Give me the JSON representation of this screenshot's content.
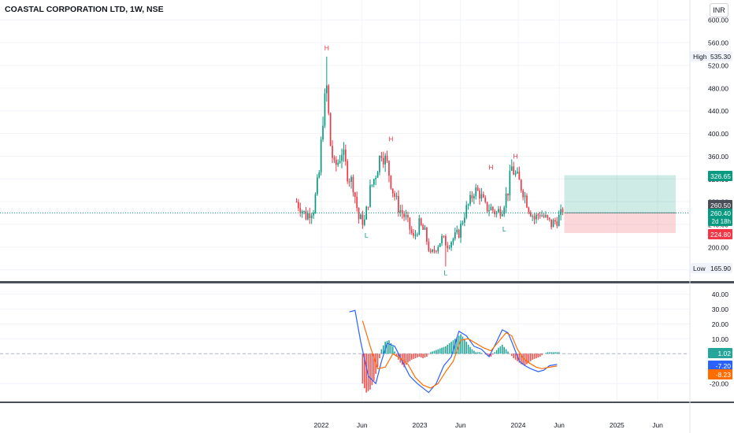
{
  "header": {
    "title": "COASTAL CORPORATION LTD, 1W, NSE",
    "currency": "INR"
  },
  "price_axis": {
    "ticks": [
      "600.00",
      "560.00",
      "520.00",
      "480.00",
      "440.00",
      "400.00",
      "360.00",
      "320.00",
      "280.00",
      "240.00",
      "200.00",
      "160.00"
    ]
  },
  "indicator_axis": {
    "ticks": [
      "40.00",
      "30.00",
      "20.00",
      "10.00",
      "0.00",
      "-20.00"
    ]
  },
  "time_axis": {
    "labels": [
      "2022",
      "Jun",
      "2023",
      "Jun",
      "2024",
      "Jun",
      "2025",
      "Jun"
    ]
  },
  "badges": {
    "high_label": "High",
    "high_value": "535.30",
    "low_label": "Low",
    "low_value": "165.90",
    "target": "326.65",
    "prev_price": "260.50",
    "price": "260.40",
    "countdown": "2d 18h",
    "stop": "224.80",
    "macd_hist": "1.02",
    "macd_line": "-7.20",
    "macd_signal": "-8.23"
  },
  "pattern_labels": {
    "high": "H",
    "low": "L"
  },
  "chart_data": [
    {
      "type": "candlestick",
      "title": "COASTAL CORPORATION LTD, 1W, NSE",
      "ylim": [
        150,
        610
      ],
      "x_labels": [
        "2022",
        "Jun",
        "2023",
        "Jun",
        "2024",
        "Jun",
        "2025",
        "Jun"
      ],
      "x_label_dates": [
        "2022-01-01",
        "2022-06-01",
        "2023-01-01",
        "2023-06-01",
        "2024-01-01",
        "2024-06-01",
        "2025-01-01",
        "2025-06-01"
      ],
      "start_date": "2021-10-01",
      "close_waypoints": [
        [
          0,
          280
        ],
        [
          5,
          255
        ],
        [
          9,
          268
        ],
        [
          12,
          330
        ],
        [
          14,
          430
        ],
        [
          16,
          480
        ],
        [
          18,
          380
        ],
        [
          20,
          340
        ],
        [
          22,
          350
        ],
        [
          24,
          370
        ],
        [
          27,
          330
        ],
        [
          30,
          310
        ],
        [
          33,
          250
        ],
        [
          36,
          245
        ],
        [
          39,
          300
        ],
        [
          42,
          330
        ],
        [
          45,
          370
        ],
        [
          48,
          345
        ],
        [
          51,
          300
        ],
        [
          54,
          270
        ],
        [
          58,
          250
        ],
        [
          62,
          215
        ],
        [
          65,
          240
        ],
        [
          68,
          225
        ],
        [
          71,
          185
        ],
        [
          74,
          200
        ],
        [
          77,
          215
        ],
        [
          80,
          205
        ],
        [
          83,
          215
        ],
        [
          86,
          225
        ],
        [
          89,
          260
        ],
        [
          92,
          280
        ],
        [
          94,
          300
        ],
        [
          97,
          295
        ],
        [
          100,
          270
        ],
        [
          103,
          268
        ],
        [
          106,
          260
        ],
        [
          109,
          270
        ],
        [
          112,
          300
        ],
        [
          114,
          340
        ],
        [
          117,
          320
        ],
        [
          120,
          300
        ],
        [
          123,
          270
        ],
        [
          126,
          250
        ],
        [
          129,
          260
        ],
        [
          132,
          250
        ],
        [
          135,
          240
        ],
        [
          138,
          248
        ],
        [
          141,
          260.4
        ]
      ],
      "high": 535.3,
      "low": 165.9,
      "last": 260.4,
      "position": {
        "entry": 260.4,
        "target": 326.65,
        "stop": 224.8
      },
      "pivots": [
        {
          "kind": "high",
          "week": 16,
          "price": 535.3
        },
        {
          "kind": "high",
          "week": 50,
          "price": 375
        },
        {
          "kind": "high",
          "week": 103,
          "price": 325
        },
        {
          "kind": "high",
          "week": 116,
          "price": 345
        },
        {
          "kind": "low",
          "week": 37,
          "price": 236
        },
        {
          "kind": "low",
          "week": 79,
          "price": 170
        },
        {
          "kind": "low",
          "week": 110,
          "price": 247
        }
      ]
    },
    {
      "type": "line",
      "ylabel": "",
      "ylim": [
        -32,
        46
      ],
      "series": [
        {
          "color": "#2962ff",
          "points": [
            [
              28,
              28
            ],
            [
              31,
              29
            ],
            [
              34,
              8
            ],
            [
              38,
              -15
            ],
            [
              42,
              -20
            ],
            [
              45,
              -5
            ],
            [
              48,
              7
            ],
            [
              52,
              5
            ],
            [
              56,
              -5
            ],
            [
              60,
              -15
            ],
            [
              64,
              -20
            ],
            [
              68,
              -24
            ],
            [
              70,
              -26
            ],
            [
              74,
              -20
            ],
            [
              78,
              -8
            ],
            [
              82,
              -2
            ],
            [
              86,
              15
            ],
            [
              90,
              12
            ],
            [
              94,
              5
            ],
            [
              98,
              3
            ],
            [
              102,
              -2
            ],
            [
              106,
              8
            ],
            [
              109,
              16
            ],
            [
              112,
              14
            ],
            [
              114,
              8
            ],
            [
              118,
              -5
            ],
            [
              121,
              -8
            ],
            [
              124,
              -10
            ],
            [
              128,
              -12
            ],
            [
              131,
              -11
            ],
            [
              134,
              -8
            ],
            [
              138,
              -7.2
            ]
          ]
        },
        {
          "color": "#ff6d00",
          "points": [
            [
              35,
              22
            ],
            [
              39,
              5
            ],
            [
              43,
              -10
            ],
            [
              47,
              -9
            ],
            [
              51,
              0
            ],
            [
              55,
              -3
            ],
            [
              59,
              -7
            ],
            [
              63,
              -16
            ],
            [
              67,
              -21
            ],
            [
              71,
              -23
            ],
            [
              75,
              -20
            ],
            [
              79,
              -12
            ],
            [
              83,
              -5
            ],
            [
              87,
              9
            ],
            [
              91,
              10
            ],
            [
              95,
              7
            ],
            [
              99,
              4
            ],
            [
              103,
              2
            ],
            [
              107,
              8
            ],
            [
              111,
              14
            ],
            [
              114,
              12
            ],
            [
              117,
              3
            ],
            [
              120,
              -3
            ],
            [
              123,
              -6
            ],
            [
              127,
              -9
            ],
            [
              130,
              -10
            ],
            [
              134,
              -9
            ],
            [
              138,
              -8.23
            ]
          ]
        }
      ],
      "histogram": [
        [
          35,
          -20
        ],
        [
          37,
          -26
        ],
        [
          39,
          -24
        ],
        [
          41,
          -18
        ],
        [
          43,
          -9
        ],
        [
          45,
          3
        ],
        [
          47,
          8
        ],
        [
          49,
          9
        ],
        [
          51,
          5
        ],
        [
          53,
          -2
        ],
        [
          55,
          -6
        ],
        [
          57,
          -9
        ],
        [
          59,
          -6
        ],
        [
          61,
          -4
        ],
        [
          63,
          -3
        ],
        [
          65,
          -2
        ],
        [
          67,
          -3
        ],
        [
          69,
          -2
        ],
        [
          71,
          1
        ],
        [
          73,
          2
        ],
        [
          75,
          3
        ],
        [
          77,
          4
        ],
        [
          79,
          5
        ],
        [
          81,
          7
        ],
        [
          83,
          9
        ],
        [
          85,
          11
        ],
        [
          87,
          13
        ],
        [
          89,
          10
        ],
        [
          91,
          6
        ],
        [
          93,
          3
        ],
        [
          95,
          1
        ],
        [
          97,
          1
        ],
        [
          99,
          0
        ],
        [
          101,
          -1
        ],
        [
          103,
          -2
        ],
        [
          105,
          1
        ],
        [
          107,
          4
        ],
        [
          109,
          6
        ],
        [
          111,
          3
        ],
        [
          113,
          0
        ],
        [
          115,
          -3
        ],
        [
          117,
          -5
        ],
        [
          119,
          -7
        ],
        [
          121,
          -8
        ],
        [
          123,
          -6
        ],
        [
          125,
          -4
        ],
        [
          127,
          -3
        ],
        [
          129,
          -2
        ],
        [
          131,
          0
        ],
        [
          133,
          1
        ],
        [
          135,
          1
        ],
        [
          138,
          1.02
        ]
      ]
    }
  ]
}
